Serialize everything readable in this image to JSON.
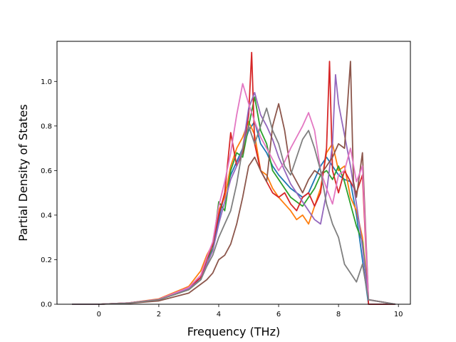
{
  "chart_data": {
    "type": "line",
    "title": "",
    "xlabel": "Frequency (THz)",
    "ylabel": "Partial Density of States",
    "xlim": [
      -1.4,
      10.4
    ],
    "ylim": [
      0.0,
      1.18
    ],
    "xticks": [
      0,
      2,
      4,
      6,
      8,
      10
    ],
    "yticks": [
      0.0,
      0.2,
      0.4,
      0.6,
      0.8,
      1.0
    ],
    "grid": false,
    "legend": "none",
    "series": [
      {
        "color": "#1f77b4",
        "points": [
          [
            -0.9,
            0
          ],
          [
            0,
            0
          ],
          [
            1,
            0.006
          ],
          [
            2,
            0.022
          ],
          [
            3,
            0.07
          ],
          [
            3.4,
            0.12
          ],
          [
            3.6,
            0.2
          ],
          [
            3.8,
            0.25
          ],
          [
            4,
            0.38
          ],
          [
            4.2,
            0.5
          ],
          [
            4.4,
            0.58
          ],
          [
            4.6,
            0.64
          ],
          [
            4.8,
            0.7
          ],
          [
            5,
            0.78
          ],
          [
            5.2,
            0.82
          ],
          [
            5.4,
            0.72
          ],
          [
            5.6,
            0.68
          ],
          [
            5.8,
            0.62
          ],
          [
            6,
            0.58
          ],
          [
            6.2,
            0.55
          ],
          [
            6.4,
            0.52
          ],
          [
            6.6,
            0.5
          ],
          [
            6.8,
            0.48
          ],
          [
            7,
            0.5
          ],
          [
            7.2,
            0.56
          ],
          [
            7.4,
            0.62
          ],
          [
            7.6,
            0.66
          ],
          [
            7.8,
            0.62
          ],
          [
            8,
            0.58
          ],
          [
            8.2,
            0.56
          ],
          [
            8.4,
            0.55
          ],
          [
            8.6,
            0.4
          ],
          [
            8.8,
            0.2
          ],
          [
            9,
            0
          ],
          [
            9.9,
            0
          ]
        ]
      },
      {
        "color": "#ff7f0e",
        "points": [
          [
            -0.9,
            0
          ],
          [
            0,
            0
          ],
          [
            1,
            0.006
          ],
          [
            2,
            0.024
          ],
          [
            3,
            0.08
          ],
          [
            3.4,
            0.15
          ],
          [
            3.6,
            0.22
          ],
          [
            3.8,
            0.27
          ],
          [
            4,
            0.42
          ],
          [
            4.2,
            0.48
          ],
          [
            4.4,
            0.62
          ],
          [
            4.6,
            0.7
          ],
          [
            4.8,
            0.75
          ],
          [
            5,
            0.82
          ],
          [
            5.2,
            0.76
          ],
          [
            5.4,
            0.6
          ],
          [
            5.6,
            0.58
          ],
          [
            5.8,
            0.52
          ],
          [
            6,
            0.48
          ],
          [
            6.2,
            0.45
          ],
          [
            6.4,
            0.42
          ],
          [
            6.6,
            0.38
          ],
          [
            6.8,
            0.4
          ],
          [
            7,
            0.36
          ],
          [
            7.2,
            0.44
          ],
          [
            7.4,
            0.52
          ],
          [
            7.6,
            0.68
          ],
          [
            7.8,
            0.72
          ],
          [
            8,
            0.6
          ],
          [
            8.2,
            0.62
          ],
          [
            8.4,
            0.48
          ],
          [
            8.6,
            0.42
          ],
          [
            8.8,
            0.3
          ],
          [
            9,
            0.02
          ],
          [
            9.9,
            0
          ]
        ]
      },
      {
        "color": "#2ca02c",
        "points": [
          [
            -0.9,
            0
          ],
          [
            0,
            0
          ],
          [
            1,
            0.005
          ],
          [
            2,
            0.02
          ],
          [
            3,
            0.065
          ],
          [
            3.4,
            0.11
          ],
          [
            3.6,
            0.18
          ],
          [
            3.8,
            0.25
          ],
          [
            4,
            0.46
          ],
          [
            4.2,
            0.42
          ],
          [
            4.4,
            0.6
          ],
          [
            4.6,
            0.68
          ],
          [
            4.8,
            0.66
          ],
          [
            5,
            0.8
          ],
          [
            5.2,
            0.93
          ],
          [
            5.4,
            0.78
          ],
          [
            5.6,
            0.72
          ],
          [
            5.8,
            0.6
          ],
          [
            6,
            0.56
          ],
          [
            6.2,
            0.52
          ],
          [
            6.4,
            0.48
          ],
          [
            6.6,
            0.46
          ],
          [
            6.8,
            0.44
          ],
          [
            7,
            0.48
          ],
          [
            7.2,
            0.52
          ],
          [
            7.4,
            0.58
          ],
          [
            7.6,
            0.6
          ],
          [
            7.8,
            0.56
          ],
          [
            8,
            0.62
          ],
          [
            8.2,
            0.55
          ],
          [
            8.4,
            0.45
          ],
          [
            8.6,
            0.35
          ],
          [
            8.8,
            0.28
          ],
          [
            9,
            0.02
          ],
          [
            9.9,
            0
          ]
        ]
      },
      {
        "color": "#d62728",
        "points": [
          [
            -0.9,
            0
          ],
          [
            0,
            0
          ],
          [
            1,
            0.006
          ],
          [
            2,
            0.022
          ],
          [
            3,
            0.075
          ],
          [
            3.4,
            0.12
          ],
          [
            3.6,
            0.2
          ],
          [
            3.8,
            0.27
          ],
          [
            4,
            0.4
          ],
          [
            4.2,
            0.5
          ],
          [
            4.4,
            0.77
          ],
          [
            4.6,
            0.62
          ],
          [
            4.8,
            0.68
          ],
          [
            5,
            0.85
          ],
          [
            5.1,
            1.13
          ],
          [
            5.2,
            0.72
          ],
          [
            5.4,
            0.6
          ],
          [
            5.6,
            0.55
          ],
          [
            5.8,
            0.5
          ],
          [
            6,
            0.48
          ],
          [
            6.2,
            0.5
          ],
          [
            6.4,
            0.45
          ],
          [
            6.6,
            0.42
          ],
          [
            6.8,
            0.48
          ],
          [
            7,
            0.5
          ],
          [
            7.2,
            0.44
          ],
          [
            7.4,
            0.5
          ],
          [
            7.6,
            0.7
          ],
          [
            7.7,
            1.09
          ],
          [
            7.8,
            0.6
          ],
          [
            8,
            0.5
          ],
          [
            8.2,
            0.6
          ],
          [
            8.4,
            0.55
          ],
          [
            8.6,
            0.5
          ],
          [
            8.8,
            0.58
          ],
          [
            9,
            0
          ],
          [
            9.9,
            0
          ]
        ]
      },
      {
        "color": "#9467bd",
        "points": [
          [
            -0.9,
            0
          ],
          [
            0,
            0
          ],
          [
            1,
            0.005
          ],
          [
            2,
            0.02
          ],
          [
            3,
            0.07
          ],
          [
            3.4,
            0.11
          ],
          [
            3.6,
            0.18
          ],
          [
            3.8,
            0.24
          ],
          [
            4,
            0.36
          ],
          [
            4.2,
            0.46
          ],
          [
            4.4,
            0.56
          ],
          [
            4.6,
            0.62
          ],
          [
            4.8,
            0.7
          ],
          [
            5,
            0.88
          ],
          [
            5.2,
            0.95
          ],
          [
            5.4,
            0.85
          ],
          [
            5.6,
            0.8
          ],
          [
            5.8,
            0.74
          ],
          [
            6,
            0.66
          ],
          [
            6.2,
            0.6
          ],
          [
            6.4,
            0.54
          ],
          [
            6.6,
            0.5
          ],
          [
            6.8,
            0.46
          ],
          [
            7,
            0.42
          ],
          [
            7.2,
            0.38
          ],
          [
            7.4,
            0.36
          ],
          [
            7.6,
            0.5
          ],
          [
            7.8,
            0.72
          ],
          [
            7.9,
            1.03
          ],
          [
            8,
            0.9
          ],
          [
            8.2,
            0.76
          ],
          [
            8.4,
            0.62
          ],
          [
            8.6,
            0.45
          ],
          [
            8.8,
            0.26
          ],
          [
            9,
            0.02
          ],
          [
            9.9,
            0
          ]
        ]
      },
      {
        "color": "#8c564b",
        "points": [
          [
            -0.9,
            0
          ],
          [
            0,
            0
          ],
          [
            1,
            0.004
          ],
          [
            2,
            0.015
          ],
          [
            3,
            0.05
          ],
          [
            3.4,
            0.09
          ],
          [
            3.6,
            0.11
          ],
          [
            3.8,
            0.14
          ],
          [
            4,
            0.2
          ],
          [
            4.2,
            0.22
          ],
          [
            4.4,
            0.27
          ],
          [
            4.6,
            0.36
          ],
          [
            4.8,
            0.48
          ],
          [
            5,
            0.62
          ],
          [
            5.2,
            0.66
          ],
          [
            5.4,
            0.6
          ],
          [
            5.6,
            0.55
          ],
          [
            5.8,
            0.8
          ],
          [
            6,
            0.9
          ],
          [
            6.2,
            0.78
          ],
          [
            6.4,
            0.6
          ],
          [
            6.6,
            0.55
          ],
          [
            6.8,
            0.5
          ],
          [
            7,
            0.56
          ],
          [
            7.2,
            0.6
          ],
          [
            7.4,
            0.58
          ],
          [
            7.6,
            0.62
          ],
          [
            7.8,
            0.66
          ],
          [
            8,
            0.72
          ],
          [
            8.2,
            0.7
          ],
          [
            8.4,
            1.09
          ],
          [
            8.5,
            0.55
          ],
          [
            8.6,
            0.48
          ],
          [
            8.8,
            0.68
          ],
          [
            9,
            0.02
          ],
          [
            9.9,
            0
          ]
        ]
      },
      {
        "color": "#e377c2",
        "points": [
          [
            -0.9,
            0
          ],
          [
            0,
            0
          ],
          [
            1,
            0.006
          ],
          [
            2,
            0.022
          ],
          [
            3,
            0.075
          ],
          [
            3.4,
            0.13
          ],
          [
            3.6,
            0.21
          ],
          [
            3.8,
            0.28
          ],
          [
            4,
            0.44
          ],
          [
            4.2,
            0.55
          ],
          [
            4.4,
            0.68
          ],
          [
            4.6,
            0.85
          ],
          [
            4.8,
            0.99
          ],
          [
            5,
            0.9
          ],
          [
            5.2,
            0.82
          ],
          [
            5.4,
            0.75
          ],
          [
            5.6,
            0.7
          ],
          [
            5.8,
            0.65
          ],
          [
            6,
            0.6
          ],
          [
            6.2,
            0.64
          ],
          [
            6.4,
            0.7
          ],
          [
            6.6,
            0.75
          ],
          [
            6.8,
            0.8
          ],
          [
            7,
            0.86
          ],
          [
            7.2,
            0.78
          ],
          [
            7.4,
            0.6
          ],
          [
            7.6,
            0.52
          ],
          [
            7.8,
            0.45
          ],
          [
            8,
            0.58
          ],
          [
            8.2,
            0.6
          ],
          [
            8.4,
            0.7
          ],
          [
            8.6,
            0.55
          ],
          [
            8.8,
            0.62
          ],
          [
            9,
            0.02
          ],
          [
            9.9,
            0
          ]
        ]
      },
      {
        "color": "#7f7f7f",
        "points": [
          [
            -0.9,
            0
          ],
          [
            0,
            0
          ],
          [
            1,
            0.005
          ],
          [
            2,
            0.02
          ],
          [
            3,
            0.065
          ],
          [
            3.4,
            0.11
          ],
          [
            3.6,
            0.17
          ],
          [
            3.8,
            0.22
          ],
          [
            4,
            0.3
          ],
          [
            4.2,
            0.36
          ],
          [
            4.4,
            0.42
          ],
          [
            4.6,
            0.54
          ],
          [
            4.8,
            0.7
          ],
          [
            5,
            0.8
          ],
          [
            5.2,
            0.72
          ],
          [
            5.4,
            0.8
          ],
          [
            5.6,
            0.88
          ],
          [
            5.8,
            0.78
          ],
          [
            6,
            0.72
          ],
          [
            6.2,
            0.62
          ],
          [
            6.4,
            0.58
          ],
          [
            6.6,
            0.66
          ],
          [
            6.8,
            0.74
          ],
          [
            7,
            0.78
          ],
          [
            7.2,
            0.7
          ],
          [
            7.4,
            0.6
          ],
          [
            7.6,
            0.45
          ],
          [
            7.8,
            0.36
          ],
          [
            8,
            0.3
          ],
          [
            8.2,
            0.18
          ],
          [
            8.4,
            0.14
          ],
          [
            8.6,
            0.1
          ],
          [
            8.8,
            0.18
          ],
          [
            9,
            0.02
          ],
          [
            9.9,
            0
          ]
        ]
      }
    ]
  }
}
